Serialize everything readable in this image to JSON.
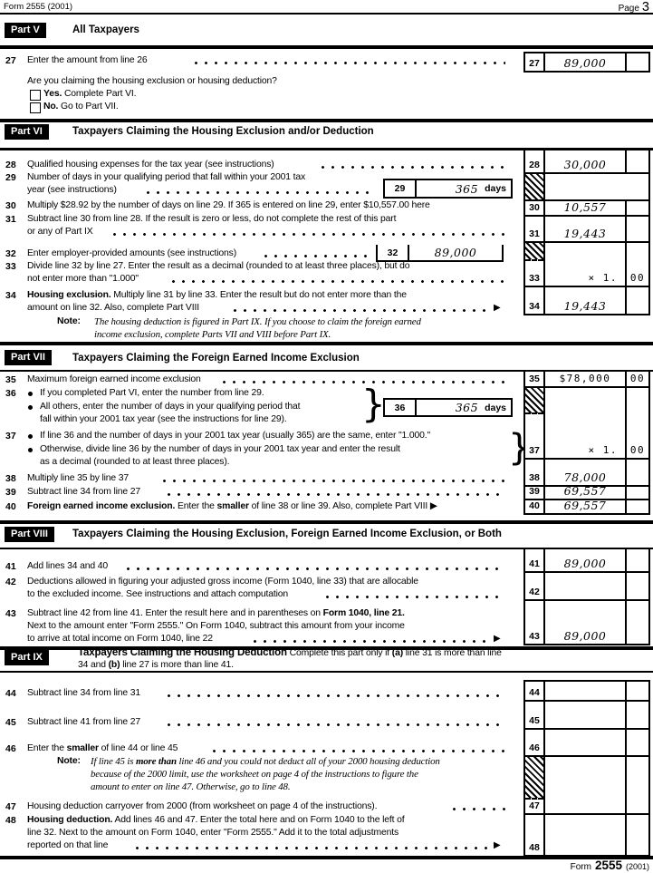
{
  "header": {
    "form_id": "Form 2555 (2001)",
    "page_word": "Page",
    "page_num": "3"
  },
  "footer": {
    "form_word": "Form",
    "form_number": "2555",
    "year": "(2001)"
  },
  "misc": {
    "arrow": "▶",
    "brace": "}",
    "note_label": "Note:"
  },
  "parts": {
    "v": {
      "badge": "Part V",
      "title": "All Taxpayers"
    },
    "vi": {
      "badge": "Part VI",
      "title": "Taxpayers Claiming the Housing Exclusion and/or Deduction"
    },
    "vii": {
      "badge": "Part VII",
      "title": "Taxpayers Claiming the Foreign Earned Income Exclusion"
    },
    "viii": {
      "badge": "Part VIII",
      "title": "Taxpayers Claiming the Housing Exclusion, Foreign Earned Income Exclusion, or Both"
    },
    "ix": {
      "badge": "Part IX"
    }
  },
  "tl": {
    "l27": [
      {
        "t": "Enter the amount from line 26"
      }
    ],
    "q27": [
      {
        "t": "Are you claiming the housing exclusion or housing deduction?"
      }
    ],
    "yes": [
      {
        "t": "Yes.",
        "b": true
      },
      {
        "t": " Complete Part VI."
      }
    ],
    "no": [
      {
        "t": "No.",
        "b": true
      },
      {
        "t": "  Go to Part VII."
      }
    ],
    "l28": [
      {
        "t": "Qualified housing expenses for the tax year (see instructions)"
      }
    ],
    "l29a": [
      {
        "t": "Number of days in your qualifying period that fall within your 2001 tax"
      }
    ],
    "l29b": [
      {
        "t": "year (see instructions)"
      }
    ],
    "l30": [
      {
        "t": "Multiply $28.92 by the number of days on line 29. If 365 is entered on line 29, enter $10,557.00 here"
      }
    ],
    "l31a": [
      {
        "t": "Subtract line 30 from line 28. If the result is zero or less, do not complete the rest of this part"
      }
    ],
    "l31b": [
      {
        "t": "or any of Part IX"
      }
    ],
    "l32": [
      {
        "t": "Enter employer-provided amounts (see instructions)"
      }
    ],
    "l33a": [
      {
        "t": "Divide line 32 by line 27. Enter the result as a decimal (rounded to at least three places), but do"
      }
    ],
    "l33b": [
      {
        "t": "not enter more than \"1.000\""
      }
    ],
    "l34a": [
      {
        "t": "Housing exclusion.",
        "b": true
      },
      {
        "t": " Multiply line 31 by line 33. Enter the result but do not enter more than the"
      }
    ],
    "l34b": [
      {
        "t": "amount on line 32. Also, complete Part VIII"
      }
    ],
    "note6a": [
      {
        "t": "The housing deduction is figured in Part IX. If you choose to claim the foreign earned",
        "i": true
      }
    ],
    "note6b": [
      {
        "t": "income exclusion, complete Parts VII and VIII before Part IX.",
        "i": true
      }
    ],
    "l35": [
      {
        "t": "Maximum foreign earned income exclusion"
      }
    ],
    "l36a": [
      {
        "t": "If you completed Part VI, enter the number from line 29."
      }
    ],
    "l36b": [
      {
        "t": "All others, enter the number of days in your qualifying period that"
      }
    ],
    "l36c": [
      {
        "t": "fall within your 2001 tax year (see the instructions for line 29)."
      }
    ],
    "l37a": [
      {
        "t": "If line 36 and the number of days in your 2001 tax year (usually 365) are the same, enter \"1.000.\""
      }
    ],
    "l37b": [
      {
        "t": "Otherwise, divide line 36 by the number of days in your 2001 tax year and enter the result"
      }
    ],
    "l37c": [
      {
        "t": "as a decimal (rounded to at least three places)."
      }
    ],
    "l38": [
      {
        "t": "Multiply line 35 by line 37"
      }
    ],
    "l39": [
      {
        "t": "Subtract line 34 from line 27"
      }
    ],
    "l40": [
      {
        "t": "Foreign earned income exclusion.",
        "b": true
      },
      {
        "t": " Enter the "
      },
      {
        "t": "smaller",
        "b": true
      },
      {
        "t": " of line 38 or line 39. Also, complete Part VIII "
      },
      {
        "t": "▶"
      }
    ],
    "l41": [
      {
        "t": "Add lines 34 and 40"
      }
    ],
    "l42a": [
      {
        "t": "Deductions allowed in figuring your adjusted gross income (Form 1040, line 33) that are allocable"
      }
    ],
    "l42b": [
      {
        "t": "to the excluded income. See instructions and attach computation"
      }
    ],
    "l43a": [
      {
        "t": "Subtract line 42 from line 41. Enter the result here and in parentheses on "
      },
      {
        "t": "Form 1040, line 21.",
        "b": true
      }
    ],
    "l43b": [
      {
        "t": "Next to the amount enter \"Form 2555.\" On Form 1040, subtract this amount from your income"
      }
    ],
    "l43c": [
      {
        "t": "to arrive at total income on Form 1040, line 22"
      }
    ],
    "ix1": [
      {
        "t": "Taxpayers Claiming the Housing Deduction",
        "b": true,
        "big": true
      },
      {
        "t": "   Complete this part only if "
      },
      {
        "t": "(a)",
        "b": true
      },
      {
        "t": " line 31 is more than line"
      }
    ],
    "ix2": [
      {
        "t": "34 and "
      },
      {
        "t": "(b)",
        "b": true
      },
      {
        "t": " line 27 is more than line 41."
      }
    ],
    "l44": [
      {
        "t": "Subtract line 34 from line 31"
      }
    ],
    "l45": [
      {
        "t": "Subtract line 41 from line 27"
      }
    ],
    "l46": [
      {
        "t": "Enter the "
      },
      {
        "t": "smaller",
        "b": true
      },
      {
        "t": " of line 44 or line 45"
      }
    ],
    "note9a": [
      {
        "t": "If line 45 is ",
        "i": true
      },
      {
        "t": "more than",
        "b": true,
        "i": true
      },
      {
        "t": " line 46 and you could not deduct all of your 2000 housing deduction",
        "i": true
      }
    ],
    "note9b": [
      {
        "t": "because of the 2000 limit, use the worksheet on page 4 of the instructions to figure the",
        "i": true
      }
    ],
    "note9c": [
      {
        "t": "amount to enter on line 47. Otherwise, go to line 48.",
        "i": true
      }
    ],
    "l47": [
      {
        "t": "Housing deduction carryover from 2000 (from worksheet on page 4 of the instructions)."
      }
    ],
    "l48a": [
      {
        "t": "Housing deduction.",
        "b": true
      },
      {
        "t": " Add lines 46 and 47. Enter the total here and on Form 1040 to the left of"
      }
    ],
    "l48b": [
      {
        "t": "line 32. Next to the amount on Form 1040, enter \"Form 2555.\" Add it to the total adjustments"
      }
    ],
    "l48c": [
      {
        "t": "reported on that line"
      }
    ]
  },
  "boxes": {
    "27": {
      "num": "27",
      "amount": "89,000",
      "cents": ""
    },
    "28": {
      "num": "28",
      "amount": "30,000",
      "cents": ""
    },
    "30": {
      "num": "30",
      "amount": "10,557",
      "cents": ""
    },
    "31": {
      "num": "31",
      "amount": "19,443",
      "cents": ""
    },
    "33": {
      "num": "33",
      "amount": "× 1.",
      "cents": "00"
    },
    "34": {
      "num": "34",
      "amount": "19,443",
      "cents": ""
    },
    "35": {
      "num": "35",
      "amount": "$78,000",
      "cents": "00"
    },
    "37": {
      "num": "37",
      "amount": "× 1.",
      "cents": "00"
    },
    "38": {
      "num": "38",
      "amount": "78,000",
      "cents": ""
    },
    "39": {
      "num": "39",
      "amount": "69,557",
      "cents": ""
    },
    "40": {
      "num": "40",
      "amount": "69,557",
      "cents": ""
    },
    "41": {
      "num": "41",
      "amount": "89,000",
      "cents": ""
    },
    "42": {
      "num": "42",
      "amount": "",
      "cents": ""
    },
    "43": {
      "num": "43",
      "amount": "89,000",
      "cents": ""
    },
    "44": {
      "num": "44",
      "amount": "",
      "cents": ""
    },
    "45": {
      "num": "45",
      "amount": "",
      "cents": ""
    },
    "46": {
      "num": "46",
      "amount": "",
      "cents": ""
    },
    "47": {
      "num": "47",
      "amount": "",
      "cents": ""
    },
    "48": {
      "num": "48",
      "amount": "",
      "cents": ""
    }
  },
  "inner": {
    "29": {
      "num": "29",
      "value": "365",
      "unit": "days"
    },
    "32": {
      "num": "32",
      "value": "89,000",
      "unit": ""
    },
    "36": {
      "num": "36",
      "value": "365",
      "unit": "days"
    }
  }
}
